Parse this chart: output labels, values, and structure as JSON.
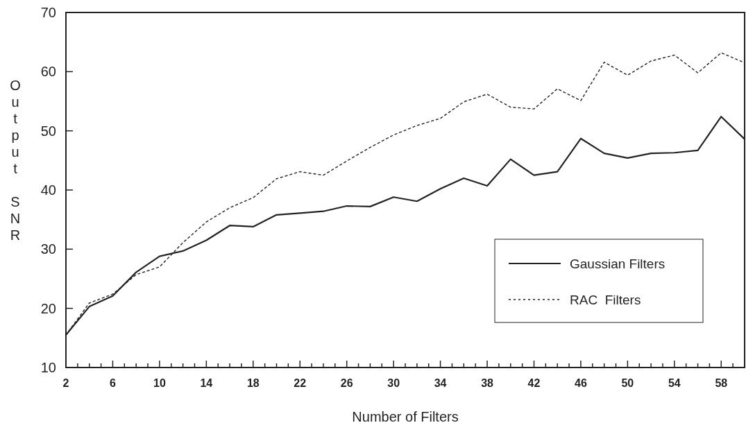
{
  "chart_data": {
    "type": "line",
    "xlabel": "Number of Filters",
    "ylabel": "Output SNR",
    "x": [
      2,
      4,
      6,
      8,
      10,
      12,
      14,
      16,
      18,
      20,
      22,
      24,
      26,
      28,
      30,
      32,
      34,
      36,
      38,
      40,
      42,
      44,
      46,
      48,
      50,
      52,
      54,
      56,
      58,
      60
    ],
    "series": [
      {
        "name": "Gaussian Filters",
        "color": "#222222",
        "line_style": "solid",
        "values": [
          15.5,
          20.3,
          22.1,
          26.1,
          28.8,
          29.7,
          31.5,
          34.0,
          33.8,
          35.8,
          36.1,
          36.4,
          37.3,
          37.2,
          38.8,
          38.1,
          40.2,
          42.0,
          40.7,
          45.2,
          42.5,
          43.1,
          48.7,
          46.2,
          45.4,
          46.2,
          46.3,
          46.7,
          52.4,
          48.6
        ]
      },
      {
        "name": "RAC  Filters",
        "color": "#222222",
        "line_style": "dotted",
        "values": [
          15.5,
          20.9,
          22.4,
          25.7,
          27.0,
          31.1,
          34.6,
          37.0,
          38.7,
          41.9,
          43.1,
          42.5,
          44.9,
          47.2,
          49.3,
          50.9,
          52.1,
          54.9,
          56.2,
          54.0,
          53.7,
          57.1,
          55.1,
          61.6,
          59.4,
          61.8,
          62.8,
          59.8,
          63.2,
          61.5
        ]
      }
    ],
    "xlim": [
      2,
      60
    ],
    "xticks": [
      2,
      {
        "value": 3,
        "label": null
      },
      {
        "value": 4,
        "label": null
      },
      {
        "value": 5,
        "label": null
      },
      6,
      {
        "value": 7,
        "label": null
      },
      {
        "value": 8,
        "label": null
      },
      {
        "value": 9,
        "label": null
      },
      10,
      {
        "value": 11,
        "label": null
      },
      {
        "value": 12,
        "label": null
      },
      {
        "value": 13,
        "label": null
      },
      14,
      {
        "value": 15,
        "label": null
      },
      {
        "value": 16,
        "label": null
      },
      {
        "value": 17,
        "label": null
      },
      18,
      {
        "value": 19,
        "label": null
      },
      {
        "value": 20,
        "label": null
      },
      {
        "value": 21,
        "label": null
      },
      22,
      {
        "value": 23,
        "label": null
      },
      {
        "value": 24,
        "label": null
      },
      {
        "value": 25,
        "label": null
      },
      26,
      {
        "value": 27,
        "label": null
      },
      {
        "value": 28,
        "label": null
      },
      {
        "value": 29,
        "label": null
      },
      30,
      {
        "value": 31,
        "label": null
      },
      {
        "value": 32,
        "label": null
      },
      {
        "value": 33,
        "label": null
      },
      34,
      {
        "value": 35,
        "label": null
      },
      {
        "value": 36,
        "label": null
      },
      {
        "value": 37,
        "label": null
      },
      38,
      {
        "value": 39,
        "label": null
      },
      {
        "value": 40,
        "label": null
      },
      {
        "value": 41,
        "label": null
      },
      42,
      {
        "value": 43,
        "label": null
      },
      {
        "value": 44,
        "label": null
      },
      {
        "value": 45,
        "label": null
      },
      46,
      {
        "value": 47,
        "label": null
      },
      {
        "value": 48,
        "label": null
      },
      {
        "value": 49,
        "label": null
      },
      50,
      {
        "value": 51,
        "label": null
      },
      {
        "value": 52,
        "label": null
      },
      {
        "value": 53,
        "label": null
      },
      54,
      {
        "value": 55,
        "label": null
      },
      {
        "value": 56,
        "label": null
      },
      {
        "value": 57,
        "label": null
      },
      58,
      {
        "value": 59,
        "label": null
      },
      {
        "value": 60,
        "label": null
      }
    ],
    "ylim": [
      10,
      70
    ],
    "yticks": [
      10,
      20,
      30,
      40,
      50,
      60,
      70
    ],
    "legend": "bottom right",
    "grid": false
  }
}
